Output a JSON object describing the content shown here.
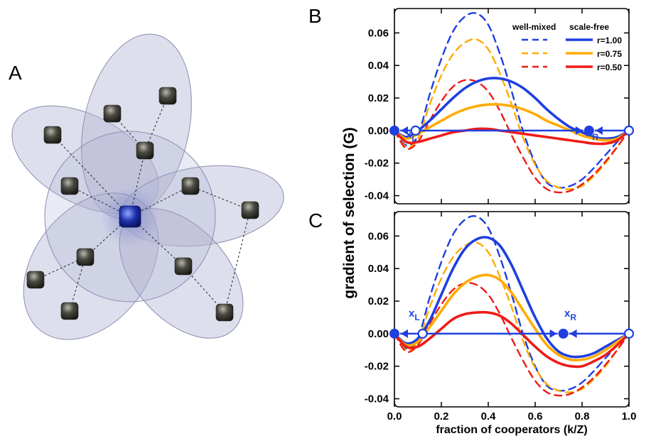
{
  "panel_labels": {
    "a": "A",
    "b": "B",
    "c": "C"
  },
  "colors": {
    "blue": "#1f3fe0",
    "orange": "#ffab00",
    "red": "#ee1c16",
    "ellipse": "#b5b8d4",
    "node": "#4a4a42",
    "hub": "#1c2ea8"
  },
  "network_illustration": {
    "description_icon": "network-icon",
    "ellipse_count": 5,
    "hub_count": 1,
    "leaf_node_count": 12
  },
  "chart_data": [
    {
      "panel": "B",
      "type": "line",
      "xlabel": "fraction of cooperators (k/Z)",
      "ylabel": "gradient of selection (G)",
      "xlim": [
        0,
        1
      ],
      "ylim": [
        -0.045,
        0.075
      ],
      "yticks": [
        "0.06",
        "0.04",
        "0.02",
        "0.00",
        "-0.02",
        "-0.04"
      ],
      "ytick_values": [
        0.06,
        0.04,
        0.02,
        0.0,
        -0.02,
        -0.04
      ],
      "legend": {
        "placement": "top-right",
        "header_left": "well-mixed",
        "header_right": "scale-free",
        "entries": [
          "r=1.00",
          "r=0.75",
          "r=0.50"
        ]
      },
      "annotations": {
        "left_label": "x",
        "left_sub": "L",
        "right_label": "x",
        "right_sub": "R"
      },
      "fixed_points": {
        "left_stable": 0.0,
        "left_unstable": 0.09,
        "right_stable": 0.83,
        "right_unstable": 1.0
      },
      "x": [
        0.0,
        0.05,
        0.1,
        0.15,
        0.2,
        0.25,
        0.3,
        0.35,
        0.4,
        0.45,
        0.5,
        0.55,
        0.6,
        0.65,
        0.7,
        0.75,
        0.8,
        0.85,
        0.9,
        0.95,
        1.0
      ],
      "series": [
        {
          "name": "r=1.00",
          "style": "dashed",
          "color": "blue",
          "values": [
            0.0,
            -0.009,
            -0.003,
            0.022,
            0.044,
            0.061,
            0.07,
            0.072,
            0.065,
            0.047,
            0.024,
            -0.001,
            -0.02,
            -0.032,
            -0.035,
            -0.034,
            -0.03,
            -0.023,
            -0.015,
            -0.007,
            0.0
          ]
        },
        {
          "name": "r=0.75",
          "style": "dashed",
          "color": "orange",
          "values": [
            0.0,
            -0.01,
            -0.005,
            0.016,
            0.034,
            0.047,
            0.054,
            0.056,
            0.05,
            0.035,
            0.016,
            -0.005,
            -0.021,
            -0.031,
            -0.035,
            -0.036,
            -0.034,
            -0.028,
            -0.02,
            -0.01,
            0.0
          ]
        },
        {
          "name": "r=0.50",
          "style": "dashed",
          "color": "red",
          "values": [
            0.0,
            -0.011,
            -0.007,
            0.006,
            0.018,
            0.027,
            0.031,
            0.03,
            0.024,
            0.012,
            -0.003,
            -0.017,
            -0.029,
            -0.036,
            -0.038,
            -0.037,
            -0.033,
            -0.027,
            -0.019,
            -0.01,
            0.0
          ]
        },
        {
          "name": "r=1.00",
          "style": "solid",
          "color": "blue",
          "values": [
            0.0,
            -0.004,
            0.0,
            0.006,
            0.013,
            0.02,
            0.026,
            0.03,
            0.032,
            0.032,
            0.03,
            0.026,
            0.02,
            0.013,
            0.007,
            0.002,
            -0.001,
            -0.004,
            -0.005,
            -0.004,
            0.0
          ]
        },
        {
          "name": "r=0.75",
          "style": "solid",
          "color": "orange",
          "values": [
            0.0,
            -0.005,
            -0.002,
            0.002,
            0.006,
            0.01,
            0.013,
            0.015,
            0.016,
            0.016,
            0.015,
            0.013,
            0.01,
            0.006,
            0.003,
            0.0,
            -0.003,
            -0.005,
            -0.006,
            -0.005,
            0.0
          ]
        },
        {
          "name": "r=0.50",
          "style": "solid",
          "color": "red",
          "values": [
            0.0,
            -0.007,
            -0.007,
            -0.005,
            -0.003,
            -0.001,
            0.0,
            0.001,
            0.001,
            0.0,
            -0.001,
            -0.002,
            -0.003,
            -0.004,
            -0.005,
            -0.006,
            -0.007,
            -0.008,
            -0.008,
            -0.006,
            0.0
          ]
        }
      ]
    },
    {
      "panel": "C",
      "type": "line",
      "xlabel": "fraction of cooperators (k/Z)",
      "ylabel": "gradient of selection (G)",
      "xlim": [
        0,
        1
      ],
      "ylim": [
        -0.045,
        0.075
      ],
      "xticks": [
        "0.0",
        "0.2",
        "0.4",
        "0.6",
        "0.8",
        "1.0"
      ],
      "xtick_values": [
        0.0,
        0.2,
        0.4,
        0.6,
        0.8,
        1.0
      ],
      "yticks": [
        "0.06",
        "0.04",
        "0.02",
        "0.00",
        "-0.02",
        "-0.04"
      ],
      "ytick_values": [
        0.06,
        0.04,
        0.02,
        0.0,
        -0.02,
        -0.04
      ],
      "annotations": {
        "left_label": "x",
        "left_sub": "L",
        "right_label": "x",
        "right_sub": "R"
      },
      "fixed_points": {
        "left_stable": 0.0,
        "left_unstable": 0.12,
        "right_stable": 0.72,
        "right_unstable": 1.0
      },
      "x": [
        0.0,
        0.05,
        0.1,
        0.15,
        0.2,
        0.25,
        0.3,
        0.35,
        0.4,
        0.45,
        0.5,
        0.55,
        0.6,
        0.65,
        0.7,
        0.75,
        0.8,
        0.85,
        0.9,
        0.95,
        1.0
      ],
      "series": [
        {
          "name": "r=1.00",
          "style": "dashed",
          "color": "blue",
          "values": [
            0.0,
            -0.009,
            -0.003,
            0.022,
            0.044,
            0.061,
            0.07,
            0.072,
            0.065,
            0.047,
            0.024,
            -0.001,
            -0.02,
            -0.032,
            -0.035,
            -0.034,
            -0.03,
            -0.023,
            -0.015,
            -0.007,
            0.0
          ]
        },
        {
          "name": "r=0.75",
          "style": "dashed",
          "color": "orange",
          "values": [
            0.0,
            -0.01,
            -0.005,
            0.016,
            0.034,
            0.047,
            0.054,
            0.056,
            0.05,
            0.035,
            0.016,
            -0.005,
            -0.021,
            -0.031,
            -0.035,
            -0.036,
            -0.034,
            -0.028,
            -0.02,
            -0.01,
            0.0
          ]
        },
        {
          "name": "r=0.50",
          "style": "dashed",
          "color": "red",
          "values": [
            0.0,
            -0.011,
            -0.007,
            0.006,
            0.018,
            0.027,
            0.031,
            0.03,
            0.024,
            0.012,
            -0.003,
            -0.017,
            -0.029,
            -0.036,
            -0.038,
            -0.037,
            -0.033,
            -0.027,
            -0.019,
            -0.01,
            0.0
          ]
        },
        {
          "name": "r=1.00",
          "style": "solid",
          "color": "blue",
          "values": [
            0.0,
            -0.006,
            -0.003,
            0.008,
            0.024,
            0.04,
            0.052,
            0.058,
            0.059,
            0.054,
            0.042,
            0.026,
            0.01,
            -0.003,
            -0.011,
            -0.014,
            -0.014,
            -0.012,
            -0.008,
            -0.004,
            0.0
          ]
        },
        {
          "name": "r=0.75",
          "style": "solid",
          "color": "orange",
          "values": [
            0.0,
            -0.007,
            -0.005,
            0.004,
            0.014,
            0.024,
            0.031,
            0.035,
            0.036,
            0.033,
            0.025,
            0.014,
            0.003,
            -0.007,
            -0.013,
            -0.016,
            -0.016,
            -0.014,
            -0.01,
            -0.005,
            0.0
          ]
        },
        {
          "name": "r=0.50",
          "style": "solid",
          "color": "red",
          "values": [
            0.0,
            -0.008,
            -0.008,
            -0.003,
            0.003,
            0.009,
            0.012,
            0.013,
            0.013,
            0.011,
            0.006,
            -0.001,
            -0.008,
            -0.014,
            -0.018,
            -0.02,
            -0.02,
            -0.017,
            -0.013,
            -0.007,
            0.0
          ]
        }
      ]
    }
  ]
}
